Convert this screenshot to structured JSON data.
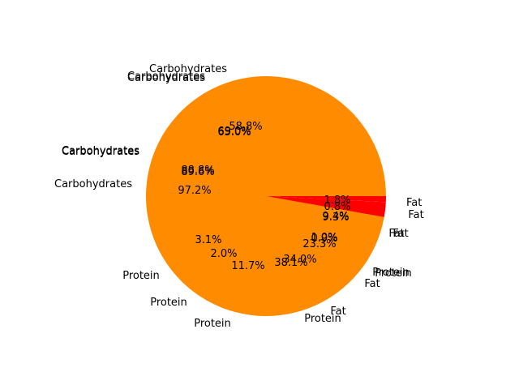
{
  "chart_data": {
    "type": "pie",
    "title": "",
    "colors": {
      "carbohydrates": "#ff8c00",
      "protein": "#ff0000",
      "fat": "#ff0000"
    },
    "note_visible": "Several pies are drawn on top of each other; labels overlap",
    "slices": [
      {
        "label": "Carbohydrates",
        "pct_label": "97.2%",
        "value": 97.2
      },
      {
        "label": "Protein",
        "pct_label": "2.0%",
        "value": 2.0
      },
      {
        "label": "Fat",
        "pct_label": "0.8%",
        "value": 0.8
      }
    ],
    "labels": [
      {
        "text": "Carbohydrates",
        "opacity": 1.0
      },
      {
        "text": "Carbohydrates",
        "opacity": 1.0
      },
      {
        "text": "Carbohydrates",
        "opacity": 1.0
      },
      {
        "text": "Carbohydrates",
        "opacity": 1.0
      },
      {
        "text": "Carbohydrates",
        "opacity": 1.0
      },
      {
        "text": "Carbohydrates",
        "opacity": 1.0
      },
      {
        "text": "Protein",
        "opacity": 1.0
      },
      {
        "text": "Protein",
        "opacity": 1.0
      },
      {
        "text": "Protein",
        "opacity": 1.0
      },
      {
        "text": "Protein",
        "opacity": 1.0
      },
      {
        "text": "Protein",
        "opacity": 1.0
      },
      {
        "text": "Protein",
        "opacity": 1.0
      },
      {
        "text": "Fat",
        "opacity": 1.0
      },
      {
        "text": "Fat",
        "opacity": 1.0
      },
      {
        "text": "Fat",
        "opacity": 1.0
      },
      {
        "text": "Fat",
        "opacity": 1.0
      },
      {
        "text": "Fat",
        "opacity": 1.0
      },
      {
        "text": "Fat",
        "opacity": 1.0
      }
    ],
    "pct_labels": [
      "58.8%",
      "69.0%",
      "65.0%",
      "89.6%",
      "88.8%",
      "97.2%",
      "3.1%",
      "2.0%",
      "11.7%",
      "38.1%",
      "34.0%",
      "23.3%",
      "1.8%",
      "0.8%",
      "9.4%",
      "9.3%",
      "1.0%",
      "0.9%"
    ]
  }
}
